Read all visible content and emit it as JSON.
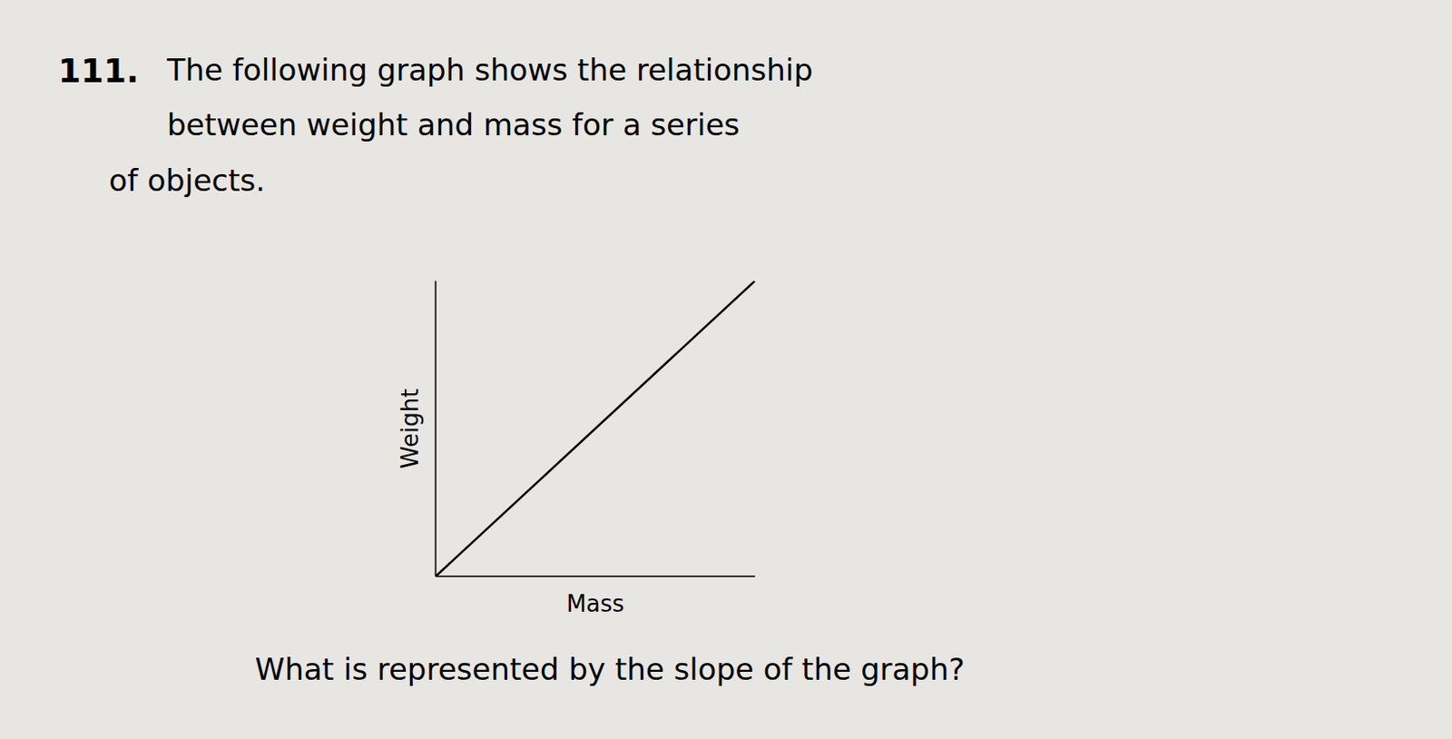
{
  "chart_data": {
    "type": "line",
    "annotations": [
      "111.",
      "The following graph shows the relationship",
      "between weight and mass for a series",
      "of objects.",
      "What is represented by the slope of the graph?"
    ],
    "x_label": "Mass",
    "y_label": "Weight",
    "x": [
      0,
      1
    ],
    "values": [
      0,
      1
    ],
    "color": "#000000",
    "xlim": [
      0,
      1
    ],
    "ylim": [
      0,
      1
    ],
    "xticks": [],
    "yticks": [],
    "grid": false,
    "tick_labels": false
  }
}
